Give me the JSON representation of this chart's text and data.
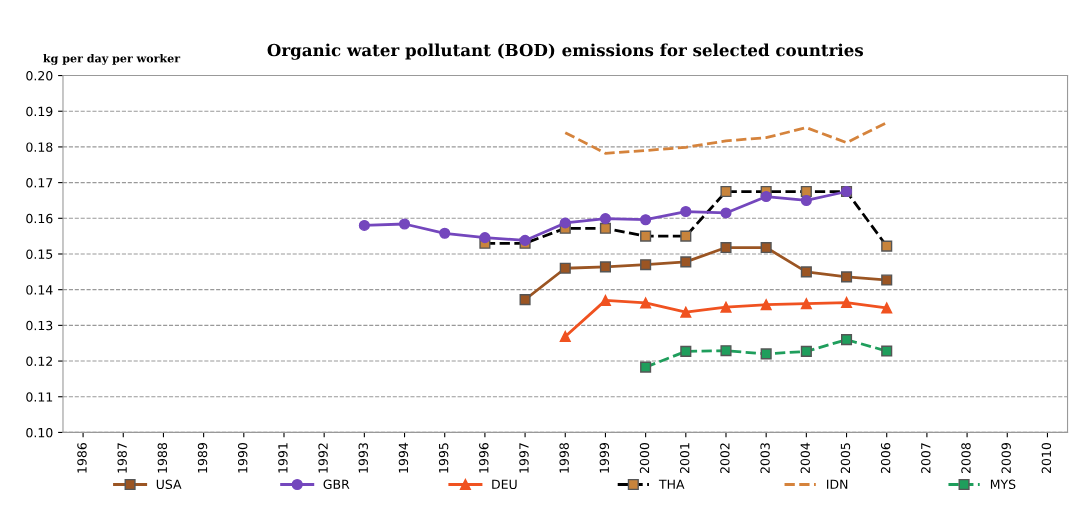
{
  "chart_data": {
    "type": "line",
    "title": "Organic water pollutant (BOD) emissions for selected countries",
    "ylabel": "kg per day per worker",
    "categories": [
      "1986",
      "1987",
      "1988",
      "1989",
      "1990",
      "1991",
      "1992",
      "1993",
      "1994",
      "1995",
      "1996",
      "1997",
      "1998",
      "1999",
      "2000",
      "2001",
      "2002",
      "2003",
      "2004",
      "2005",
      "2006",
      "2007",
      "2008",
      "2009",
      "2010"
    ],
    "series": [
      {
        "name": "USA",
        "color": "#9b5523",
        "marker": "square",
        "line_style": "solid",
        "values": [
          null,
          null,
          null,
          null,
          null,
          null,
          null,
          null,
          null,
          null,
          null,
          0.1372,
          0.146,
          0.1464,
          0.147,
          0.1478,
          0.1518,
          0.1518,
          0.145,
          0.1436,
          0.1427,
          null,
          null,
          null,
          null
        ]
      },
      {
        "name": "GBR",
        "color": "#7447bd",
        "marker": "circle",
        "line_style": "solid",
        "values": [
          null,
          null,
          null,
          null,
          null,
          null,
          null,
          0.158,
          0.1584,
          0.1558,
          0.1546,
          0.1538,
          0.1587,
          0.1599,
          0.1596,
          0.1619,
          0.1615,
          0.1661,
          0.165,
          0.1675,
          null,
          null,
          null,
          null,
          null
        ]
      },
      {
        "name": "DEU",
        "color": "#f05220",
        "marker": "triangle",
        "line_style": "solid",
        "values": [
          null,
          null,
          null,
          null,
          null,
          null,
          null,
          null,
          null,
          null,
          null,
          null,
          0.1269,
          0.137,
          0.1363,
          0.1337,
          0.1351,
          0.1358,
          0.1361,
          0.1364,
          0.1349,
          null,
          null,
          null,
          null
        ]
      },
      {
        "name": "THA",
        "color": "#000000",
        "marker": "square",
        "line_style": "dashed",
        "values": [
          null,
          null,
          null,
          null,
          null,
          null,
          null,
          null,
          null,
          null,
          0.153,
          0.153,
          0.1572,
          0.1572,
          0.155,
          0.155,
          0.1675,
          0.1675,
          0.1675,
          0.1675,
          0.1522,
          null,
          null,
          null,
          null
        ]
      },
      {
        "name": "IDN",
        "color": "#d5833c",
        "marker": "none",
        "line_style": "dashed",
        "values": [
          null,
          null,
          null,
          null,
          null,
          null,
          null,
          null,
          null,
          null,
          null,
          null,
          0.184,
          0.1782,
          0.179,
          0.1799,
          0.1817,
          0.1826,
          0.1854,
          0.1812,
          0.1868,
          null,
          null,
          null,
          null
        ]
      },
      {
        "name": "MYS",
        "color": "#1f9e5c",
        "marker": "square",
        "line_style": "dashed",
        "values": [
          null,
          null,
          null,
          null,
          null,
          null,
          null,
          null,
          null,
          null,
          null,
          null,
          null,
          null,
          0.1183,
          0.1227,
          0.1229,
          0.122,
          0.1227,
          0.126,
          0.1228,
          null,
          null,
          null,
          null
        ]
      }
    ],
    "ylim": [
      0.1,
      0.2
    ],
    "yticks": [
      {
        "value": 0.1,
        "label": "0.10"
      },
      {
        "value": 0.11,
        "label": "0.11"
      },
      {
        "value": 0.12,
        "label": "0.12"
      },
      {
        "value": 0.13,
        "label": "0.13"
      },
      {
        "value": 0.14,
        "label": "0.14"
      },
      {
        "value": 0.15,
        "label": "0.15"
      },
      {
        "value": 0.16,
        "label": "0.16"
      },
      {
        "value": 0.17,
        "label": "0.17"
      },
      {
        "value": 0.18,
        "label": "0.18"
      },
      {
        "value": 0.19,
        "label": "0.19"
      },
      {
        "value": 0.2,
        "label": "0.20"
      }
    ],
    "grid": "y",
    "legend": "bottom"
  }
}
